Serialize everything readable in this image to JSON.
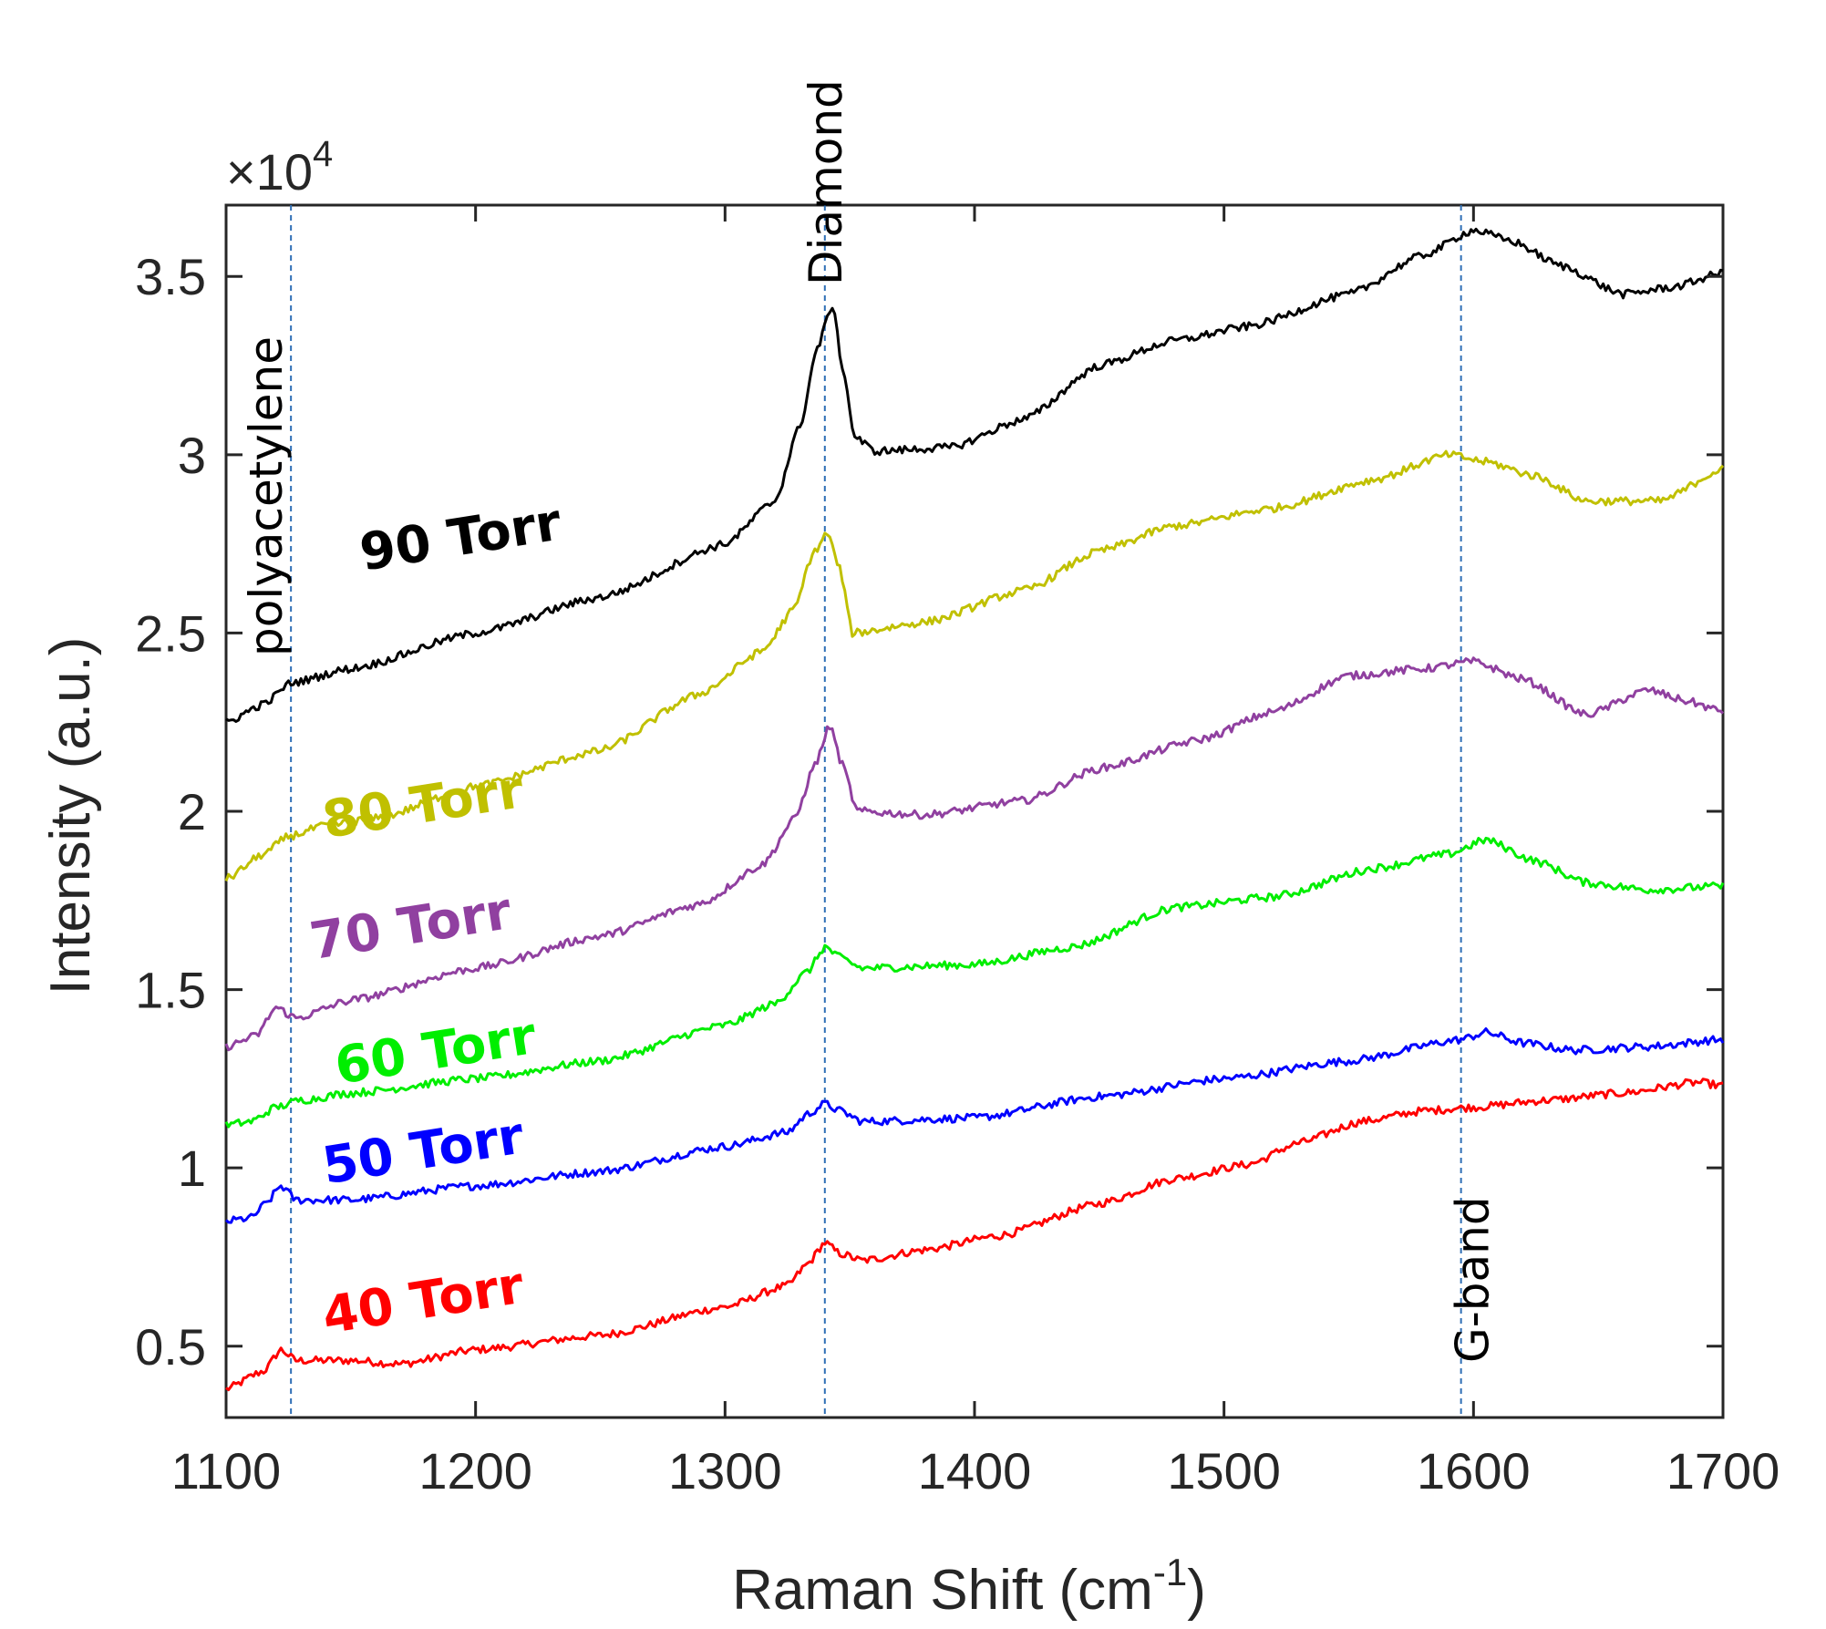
{
  "chart_data": {
    "type": "line",
    "xlabel_main": "Raman Shift (cm",
    "xlabel_sup": "-1",
    "xlabel_end": ")",
    "ylabel": "Intensity (a.u.)",
    "y_exponent_prefix": "×10",
    "y_exponent_power": "4",
    "xlim": [
      1100,
      1700
    ],
    "ylim": [
      0.3,
      3.7
    ],
    "xticks": [
      1100,
      1200,
      1300,
      1400,
      1500,
      1600,
      1700
    ],
    "xtick_labels": [
      "1100",
      "1200",
      "1300",
      "1400",
      "1500",
      "1600",
      "1700"
    ],
    "yticks": [
      0.5,
      1,
      1.5,
      2,
      2.5,
      3,
      3.5
    ],
    "ytick_labels": [
      "0.5",
      "1",
      "1.5",
      "2",
      "2.5",
      "3",
      "3.5"
    ],
    "grid": false,
    "reference_lines": [
      {
        "x": 1126,
        "label": "polyacetylene"
      },
      {
        "x": 1340,
        "label": "Diamond"
      },
      {
        "x": 1595,
        "label": "G-band"
      }
    ],
    "series": [
      {
        "name": "40 Torr",
        "color": "#ff0000",
        "points": [
          [
            1100,
            0.38
          ],
          [
            1115,
            0.43
          ],
          [
            1122,
            0.49
          ],
          [
            1128,
            0.46
          ],
          [
            1150,
            0.46
          ],
          [
            1170,
            0.45
          ],
          [
            1200,
            0.49
          ],
          [
            1250,
            0.53
          ],
          [
            1300,
            0.61
          ],
          [
            1325,
            0.67
          ],
          [
            1333,
            0.73
          ],
          [
            1340,
            0.79
          ],
          [
            1346,
            0.76
          ],
          [
            1355,
            0.74
          ],
          [
            1380,
            0.77
          ],
          [
            1410,
            0.81
          ],
          [
            1450,
            0.9
          ],
          [
            1480,
            0.97
          ],
          [
            1510,
            1.01
          ],
          [
            1530,
            1.07
          ],
          [
            1555,
            1.13
          ],
          [
            1580,
            1.16
          ],
          [
            1600,
            1.17
          ],
          [
            1630,
            1.19
          ],
          [
            1660,
            1.21
          ],
          [
            1690,
            1.24
          ],
          [
            1700,
            1.23
          ]
        ]
      },
      {
        "name": "50 Torr",
        "color": "#0000ff",
        "points": [
          [
            1100,
            0.85
          ],
          [
            1110,
            0.86
          ],
          [
            1116,
            0.9
          ],
          [
            1122,
            0.95
          ],
          [
            1128,
            0.91
          ],
          [
            1150,
            0.91
          ],
          [
            1200,
            0.95
          ],
          [
            1250,
            0.99
          ],
          [
            1300,
            1.06
          ],
          [
            1325,
            1.1
          ],
          [
            1333,
            1.15
          ],
          [
            1340,
            1.18
          ],
          [
            1346,
            1.16
          ],
          [
            1355,
            1.13
          ],
          [
            1400,
            1.14
          ],
          [
            1450,
            1.2
          ],
          [
            1500,
            1.25
          ],
          [
            1550,
            1.3
          ],
          [
            1595,
            1.36
          ],
          [
            1605,
            1.38
          ],
          [
            1620,
            1.35
          ],
          [
            1640,
            1.33
          ],
          [
            1670,
            1.34
          ],
          [
            1700,
            1.36
          ]
        ]
      },
      {
        "name": "60 Torr",
        "color": "#00ee00",
        "points": [
          [
            1100,
            1.12
          ],
          [
            1110,
            1.13
          ],
          [
            1120,
            1.17
          ],
          [
            1130,
            1.19
          ],
          [
            1150,
            1.21
          ],
          [
            1200,
            1.25
          ],
          [
            1250,
            1.3
          ],
          [
            1300,
            1.4
          ],
          [
            1320,
            1.46
          ],
          [
            1333,
            1.55
          ],
          [
            1340,
            1.62
          ],
          [
            1346,
            1.59
          ],
          [
            1355,
            1.56
          ],
          [
            1400,
            1.57
          ],
          [
            1440,
            1.62
          ],
          [
            1480,
            1.73
          ],
          [
            1520,
            1.76
          ],
          [
            1560,
            1.84
          ],
          [
            1590,
            1.88
          ],
          [
            1605,
            1.92
          ],
          [
            1625,
            1.86
          ],
          [
            1645,
            1.8
          ],
          [
            1670,
            1.78
          ],
          [
            1700,
            1.79
          ]
        ]
      },
      {
        "name": "70 Torr",
        "color": "#9040a0",
        "points": [
          [
            1100,
            1.34
          ],
          [
            1112,
            1.37
          ],
          [
            1120,
            1.45
          ],
          [
            1128,
            1.42
          ],
          [
            1150,
            1.47
          ],
          [
            1200,
            1.56
          ],
          [
            1250,
            1.65
          ],
          [
            1290,
            1.74
          ],
          [
            1315,
            1.85
          ],
          [
            1328,
            1.98
          ],
          [
            1336,
            2.13
          ],
          [
            1342,
            2.24
          ],
          [
            1347,
            2.13
          ],
          [
            1353,
            2.0
          ],
          [
            1380,
            1.99
          ],
          [
            1420,
            2.03
          ],
          [
            1450,
            2.12
          ],
          [
            1490,
            2.2
          ],
          [
            1520,
            2.28
          ],
          [
            1550,
            2.38
          ],
          [
            1580,
            2.4
          ],
          [
            1600,
            2.42
          ],
          [
            1620,
            2.37
          ],
          [
            1645,
            2.27
          ],
          [
            1670,
            2.34
          ],
          [
            1685,
            2.31
          ],
          [
            1700,
            2.28
          ]
        ]
      },
      {
        "name": "80 Torr",
        "color": "#c0c000",
        "points": [
          [
            1100,
            1.81
          ],
          [
            1115,
            1.88
          ],
          [
            1125,
            1.93
          ],
          [
            1140,
            1.96
          ],
          [
            1160,
            1.98
          ],
          [
            1200,
            2.07
          ],
          [
            1250,
            2.17
          ],
          [
            1290,
            2.33
          ],
          [
            1315,
            2.45
          ],
          [
            1328,
            2.57
          ],
          [
            1335,
            2.72
          ],
          [
            1341,
            2.78
          ],
          [
            1346,
            2.68
          ],
          [
            1351,
            2.5
          ],
          [
            1380,
            2.53
          ],
          [
            1420,
            2.62
          ],
          [
            1450,
            2.73
          ],
          [
            1480,
            2.8
          ],
          [
            1520,
            2.85
          ],
          [
            1560,
            2.93
          ],
          [
            1590,
            3.0
          ],
          [
            1605,
            2.98
          ],
          [
            1625,
            2.94
          ],
          [
            1645,
            2.87
          ],
          [
            1675,
            2.87
          ],
          [
            1700,
            2.96
          ]
        ]
      },
      {
        "name": "90 Torr",
        "color": "#000000",
        "points": [
          [
            1100,
            2.25
          ],
          [
            1115,
            2.3
          ],
          [
            1126,
            2.36
          ],
          [
            1150,
            2.4
          ],
          [
            1200,
            2.5
          ],
          [
            1250,
            2.6
          ],
          [
            1300,
            2.75
          ],
          [
            1320,
            2.87
          ],
          [
            1330,
            3.08
          ],
          [
            1337,
            3.3
          ],
          [
            1343,
            3.42
          ],
          [
            1347,
            3.25
          ],
          [
            1352,
            3.05
          ],
          [
            1360,
            3.01
          ],
          [
            1390,
            3.02
          ],
          [
            1420,
            3.1
          ],
          [
            1450,
            3.25
          ],
          [
            1480,
            3.32
          ],
          [
            1510,
            3.36
          ],
          [
            1550,
            3.45
          ],
          [
            1580,
            3.56
          ],
          [
            1600,
            3.63
          ],
          [
            1615,
            3.6
          ],
          [
            1635,
            3.53
          ],
          [
            1660,
            3.45
          ],
          [
            1680,
            3.47
          ],
          [
            1700,
            3.51
          ]
        ]
      }
    ]
  }
}
